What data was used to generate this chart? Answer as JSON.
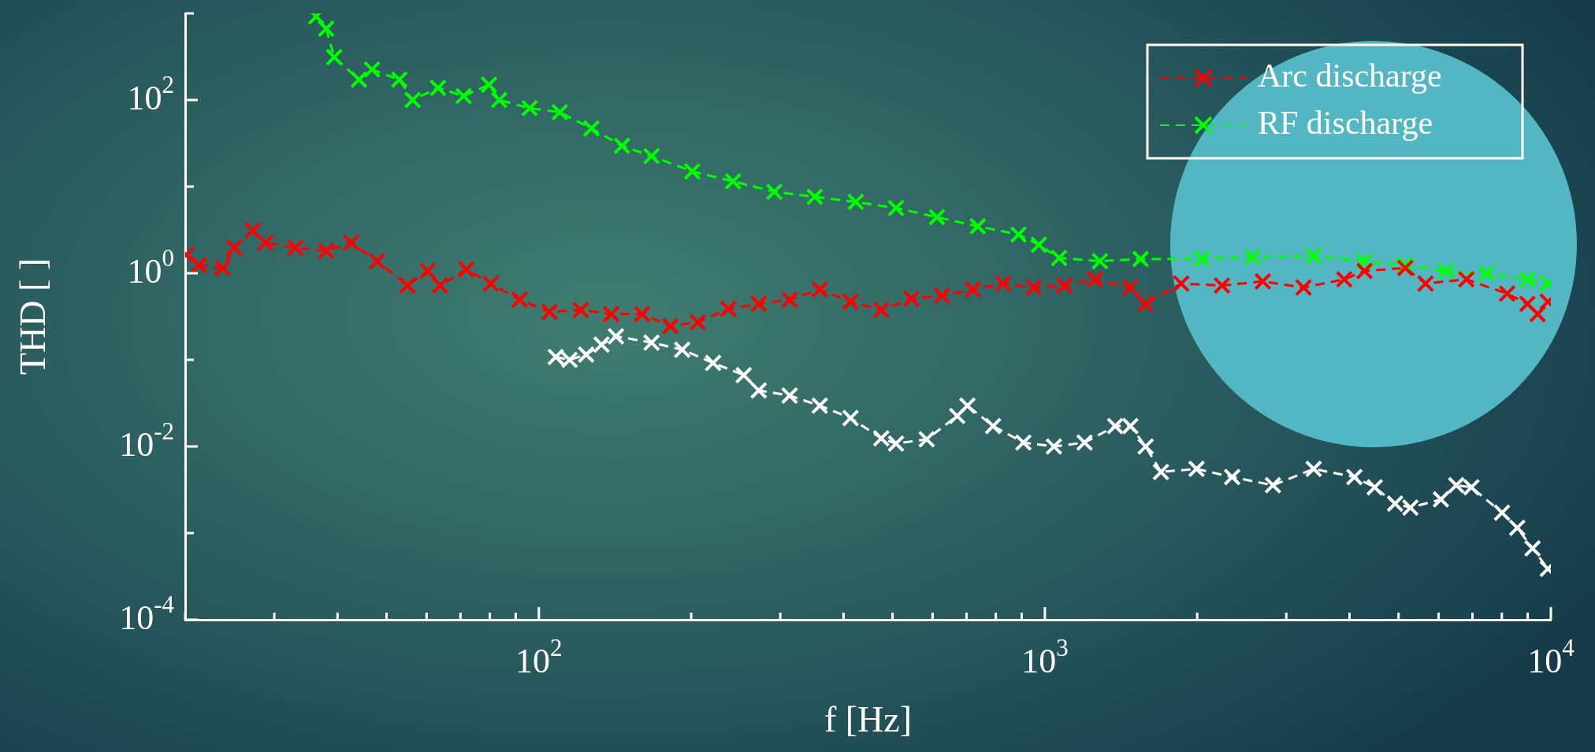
{
  "chart_data": {
    "type": "line",
    "xlabel": "f [Hz]",
    "ylabel": "THD [ ]",
    "log": "xy",
    "legend": "top right",
    "marker": "cross",
    "line_style": "dashed",
    "xlim": [
      20,
      10000
    ],
    "ylim": [
      0.0001,
      1000
    ],
    "xticks": [
      {
        "value": 20,
        "label": null
      },
      {
        "value": 30,
        "label": null
      },
      {
        "value": 40,
        "label": null
      },
      {
        "value": 50,
        "label": null
      },
      {
        "value": 60,
        "label": null
      },
      {
        "value": 70,
        "label": null
      },
      {
        "value": 80,
        "label": null
      },
      {
        "value": 90,
        "label": null
      },
      {
        "value": 100,
        "label": "10$^{2}$"
      },
      {
        "value": 200,
        "label": null
      },
      {
        "value": 300,
        "label": null
      },
      {
        "value": 400,
        "label": null
      },
      {
        "value": 500,
        "label": null
      },
      {
        "value": 600,
        "label": null
      },
      {
        "value": 700,
        "label": null
      },
      {
        "value": 800,
        "label": null
      },
      {
        "value": 900,
        "label": null
      },
      {
        "value": 1000,
        "label": "10$^{3}$"
      },
      {
        "value": 2000,
        "label": null
      },
      {
        "value": 3000,
        "label": null
      },
      {
        "value": 4000,
        "label": null
      },
      {
        "value": 5000,
        "label": null
      },
      {
        "value": 6000,
        "label": null
      },
      {
        "value": 7000,
        "label": null
      },
      {
        "value": 8000,
        "label": null
      },
      {
        "value": 9000,
        "label": null
      },
      {
        "value": 10000,
        "label": "10$^{4}$"
      }
    ],
    "yticks": [
      {
        "value": 0.0001,
        "label": "10$^{-4}$"
      },
      {
        "value": 0.001,
        "label": null
      },
      {
        "value": 0.01,
        "label": "10$^{-2}$"
      },
      {
        "value": 0.1,
        "label": null
      },
      {
        "value": 1,
        "label": "10$^{0}$"
      },
      {
        "value": 10,
        "label": null
      },
      {
        "value": 100,
        "label": "10$^{2}$"
      },
      {
        "value": 1000,
        "label": null
      }
    ],
    "series": [
      {
        "name": "Arc discharge",
        "color": "#ff0000",
        "x": [
          20.1,
          21.3,
          23.7,
          25.0,
          27.2,
          28.8,
          33.0,
          38.0,
          42.6,
          47.9,
          55.0,
          60.3,
          63.8,
          71.9,
          80.4,
          91.6,
          105,
          121,
          139,
          160,
          182,
          206,
          237,
          272,
          313,
          359,
          413,
          475,
          545,
          626,
          720,
          827,
          951,
          1092,
          1255,
          1476,
          1582,
          1860,
          2239,
          2696,
          3245,
          3905,
          4283,
          5156,
          5655,
          6808,
          8195,
          8988,
          9416,
          9862
        ],
        "values": [
          1.63,
          1.24,
          1.15,
          1.97,
          3.12,
          2.25,
          1.97,
          1.81,
          2.25,
          1.38,
          0.722,
          1.06,
          0.722,
          1.11,
          0.76,
          0.494,
          0.357,
          0.377,
          0.338,
          0.338,
          0.245,
          0.272,
          0.388,
          0.444,
          0.494,
          0.648,
          0.469,
          0.377,
          0.508,
          0.551,
          0.648,
          0.76,
          0.684,
          0.722,
          0.85,
          0.684,
          0.444,
          0.76,
          0.722,
          0.805,
          0.684,
          0.85,
          1.06,
          1.15,
          0.76,
          0.85,
          0.582,
          0.444,
          0.338,
          0.469
        ]
      },
      {
        "name": "RF discharge",
        "color": "#00ff00",
        "x": [
          36.3,
          38.0,
          39.4,
          44.1,
          46.8,
          53.0,
          56.3,
          63.2,
          71.0,
          79.7,
          83.5,
          95.9,
          110,
          127,
          146,
          167,
          201,
          242,
          292,
          351,
          423,
          508,
          612,
          737,
          887,
          973,
          1067,
          1285,
          1546,
          2041,
          2574,
          3398,
          4283,
          5156,
          6206,
          7467,
          8988,
          9862
        ],
        "values": [
          922,
          666,
          312,
          172,
          225,
          172,
          100,
          138,
          111,
          150,
          100,
          80.5,
          72.3,
          46.9,
          29.6,
          22.5,
          15.0,
          11.5,
          8.73,
          7.63,
          6.66,
          5.66,
          4.44,
          3.48,
          2.8,
          2.13,
          1.5,
          1.38,
          1.46,
          1.46,
          1.54,
          1.58,
          1.38,
          1.24,
          1.06,
          1.0,
          0.85,
          0.76
        ]
      },
      {
        "color": "#ffffff",
        "x": [
          108,
          115,
          124,
          133,
          142,
          167,
          192,
          221,
          254,
          272,
          313,
          359,
          413,
          475,
          508,
          584,
          671,
          703,
          790,
          907,
          1042,
          1198,
          1377,
          1476,
          1582,
          1696,
          1994,
          2345,
          2823,
          3398,
          4090,
          4486,
          4922,
          5277,
          6064,
          6502,
          6966,
          8008,
          8582,
          9201,
          9862
        ],
        "values": [
          0.108,
          0.1,
          0.115,
          0.15,
          0.187,
          0.158,
          0.131,
          0.0922,
          0.0666,
          0.0444,
          0.0387,
          0.0296,
          0.0213,
          0.0124,
          0.0108,
          0.0121,
          0.0225,
          0.0296,
          0.0172,
          0.0111,
          0.01,
          0.0111,
          0.0172,
          0.0172,
          0.01,
          0.00508,
          0.00551,
          0.00444,
          0.00357,
          0.00551,
          0.00444,
          0.00338,
          0.00219,
          0.00197,
          0.00245,
          0.00357,
          0.00338,
          0.00172,
          0.00115,
          0.000666,
          0.000387
        ]
      }
    ]
  }
}
